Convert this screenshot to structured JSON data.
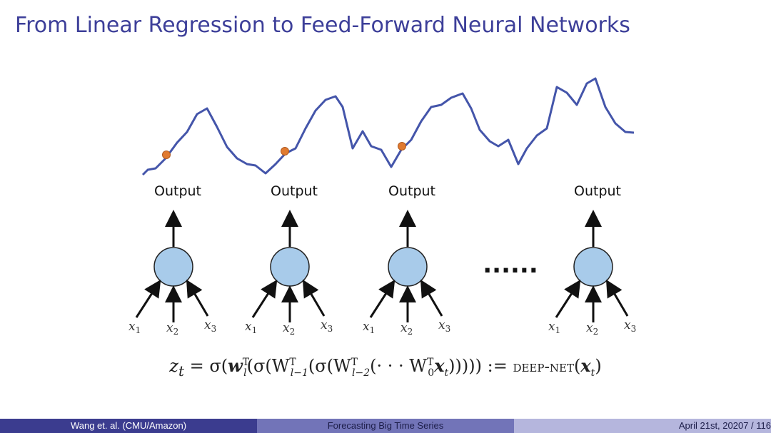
{
  "slide": {
    "title": "From Linear Regression to Feed-Forward Neural Networks"
  },
  "diagram": {
    "output_label": "Output",
    "ellipsis": "......",
    "inputs": [
      {
        "var": "x",
        "sub": "1"
      },
      {
        "var": "x",
        "sub": "2"
      },
      {
        "var": "x",
        "sub": "3"
      }
    ],
    "colors": {
      "series_line": "#4455aa",
      "node_fill": "#a8cbea",
      "marker_fill": "#e07a30",
      "arrow": "#111111"
    }
  },
  "formula": {
    "lhs": "z",
    "lhs_sub": "t",
    "text_a": " = σ(",
    "w": "w",
    "w_sub": "l",
    "w_sup": "T",
    "text_b": "(σ(W",
    "w1_sub": "l−1",
    "w1_sup": "T",
    "text_c": "(σ(W",
    "w2_sub": "l−2",
    "w2_sup": "T",
    "text_d": "(· · · W",
    "w0_sub": "0",
    "w0_sup": "T",
    "x": "x",
    "x_sub": "t",
    "text_e": "))))) := ",
    "deepnet": "deep-net",
    "text_f": "(",
    "x2": "x",
    "x2_sub": "t",
    "text_g": ")"
  },
  "footer": {
    "left": "Wang et. al. (CMU/Amazon)",
    "middle": "Forecasting Big Time Series",
    "date": "April 21st, 2020",
    "page": "7 / 116"
  }
}
